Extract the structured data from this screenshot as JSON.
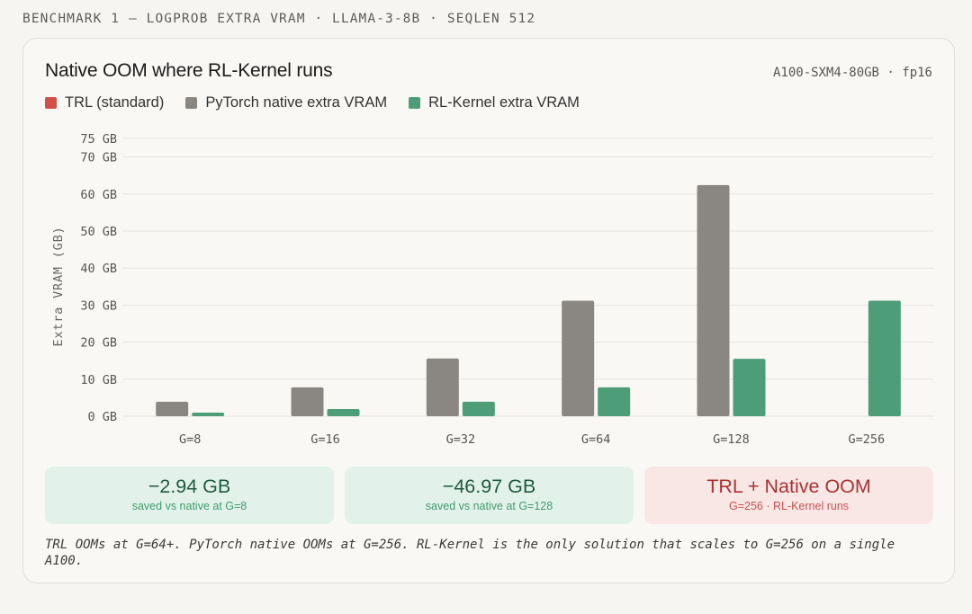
{
  "header": {
    "kicker": "BENCHMARK 1 — LOGPROB EXTRA VRAM · LLAMA-3-8B · SEQLEN 512"
  },
  "card": {
    "title": "Native OOM where RL-Kernel runs",
    "hardware": "A100-SXM4-80GB · fp16",
    "legend": [
      {
        "label": "TRL (standard)",
        "color": "#d2504a"
      },
      {
        "label": "PyTorch native extra VRAM",
        "color": "#8a8782"
      },
      {
        "label": "RL-Kernel extra VRAM",
        "color": "#4c9d78"
      }
    ]
  },
  "chart_data": {
    "type": "bar",
    "categories": [
      "G=8",
      "G=16",
      "G=32",
      "G=64",
      "G=128",
      "G=256"
    ],
    "series": [
      {
        "name": "TRL (standard)",
        "color": "#d2504a",
        "values": [
          null,
          null,
          null,
          null,
          null,
          null
        ]
      },
      {
        "name": "PyTorch native extra VRAM",
        "color": "#8a8782",
        "values": [
          3.9,
          7.8,
          15.6,
          31.2,
          62.4,
          null
        ]
      },
      {
        "name": "RL-Kernel extra VRAM",
        "color": "#4c9d78",
        "values": [
          0.98,
          1.95,
          3.9,
          7.8,
          15.5,
          31.2
        ]
      }
    ],
    "yticks": [
      0,
      10,
      20,
      30,
      40,
      50,
      60,
      70,
      75
    ],
    "ytick_labels": [
      "0 GB",
      "10 GB",
      "20 GB",
      "30 GB",
      "40 GB",
      "50 GB",
      "60 GB",
      "70 GB",
      "75 GB"
    ],
    "ylim": [
      0,
      75
    ],
    "ylabel": "Extra VRAM (GB)",
    "xlabel": "",
    "grid": true
  },
  "stats": [
    {
      "value": "−2.94 GB",
      "caption": "saved vs native at G=8"
    },
    {
      "value": "−46.97 GB",
      "caption": "saved vs native at G=128"
    },
    {
      "value": "TRL + Native OOM",
      "caption": "G=256 · RL-Kernel runs"
    }
  ],
  "footnote": "TRL OOMs at G=64+. PyTorch native OOMs at G=256. RL-Kernel is the only solution that scales to G=256 on a single A100."
}
